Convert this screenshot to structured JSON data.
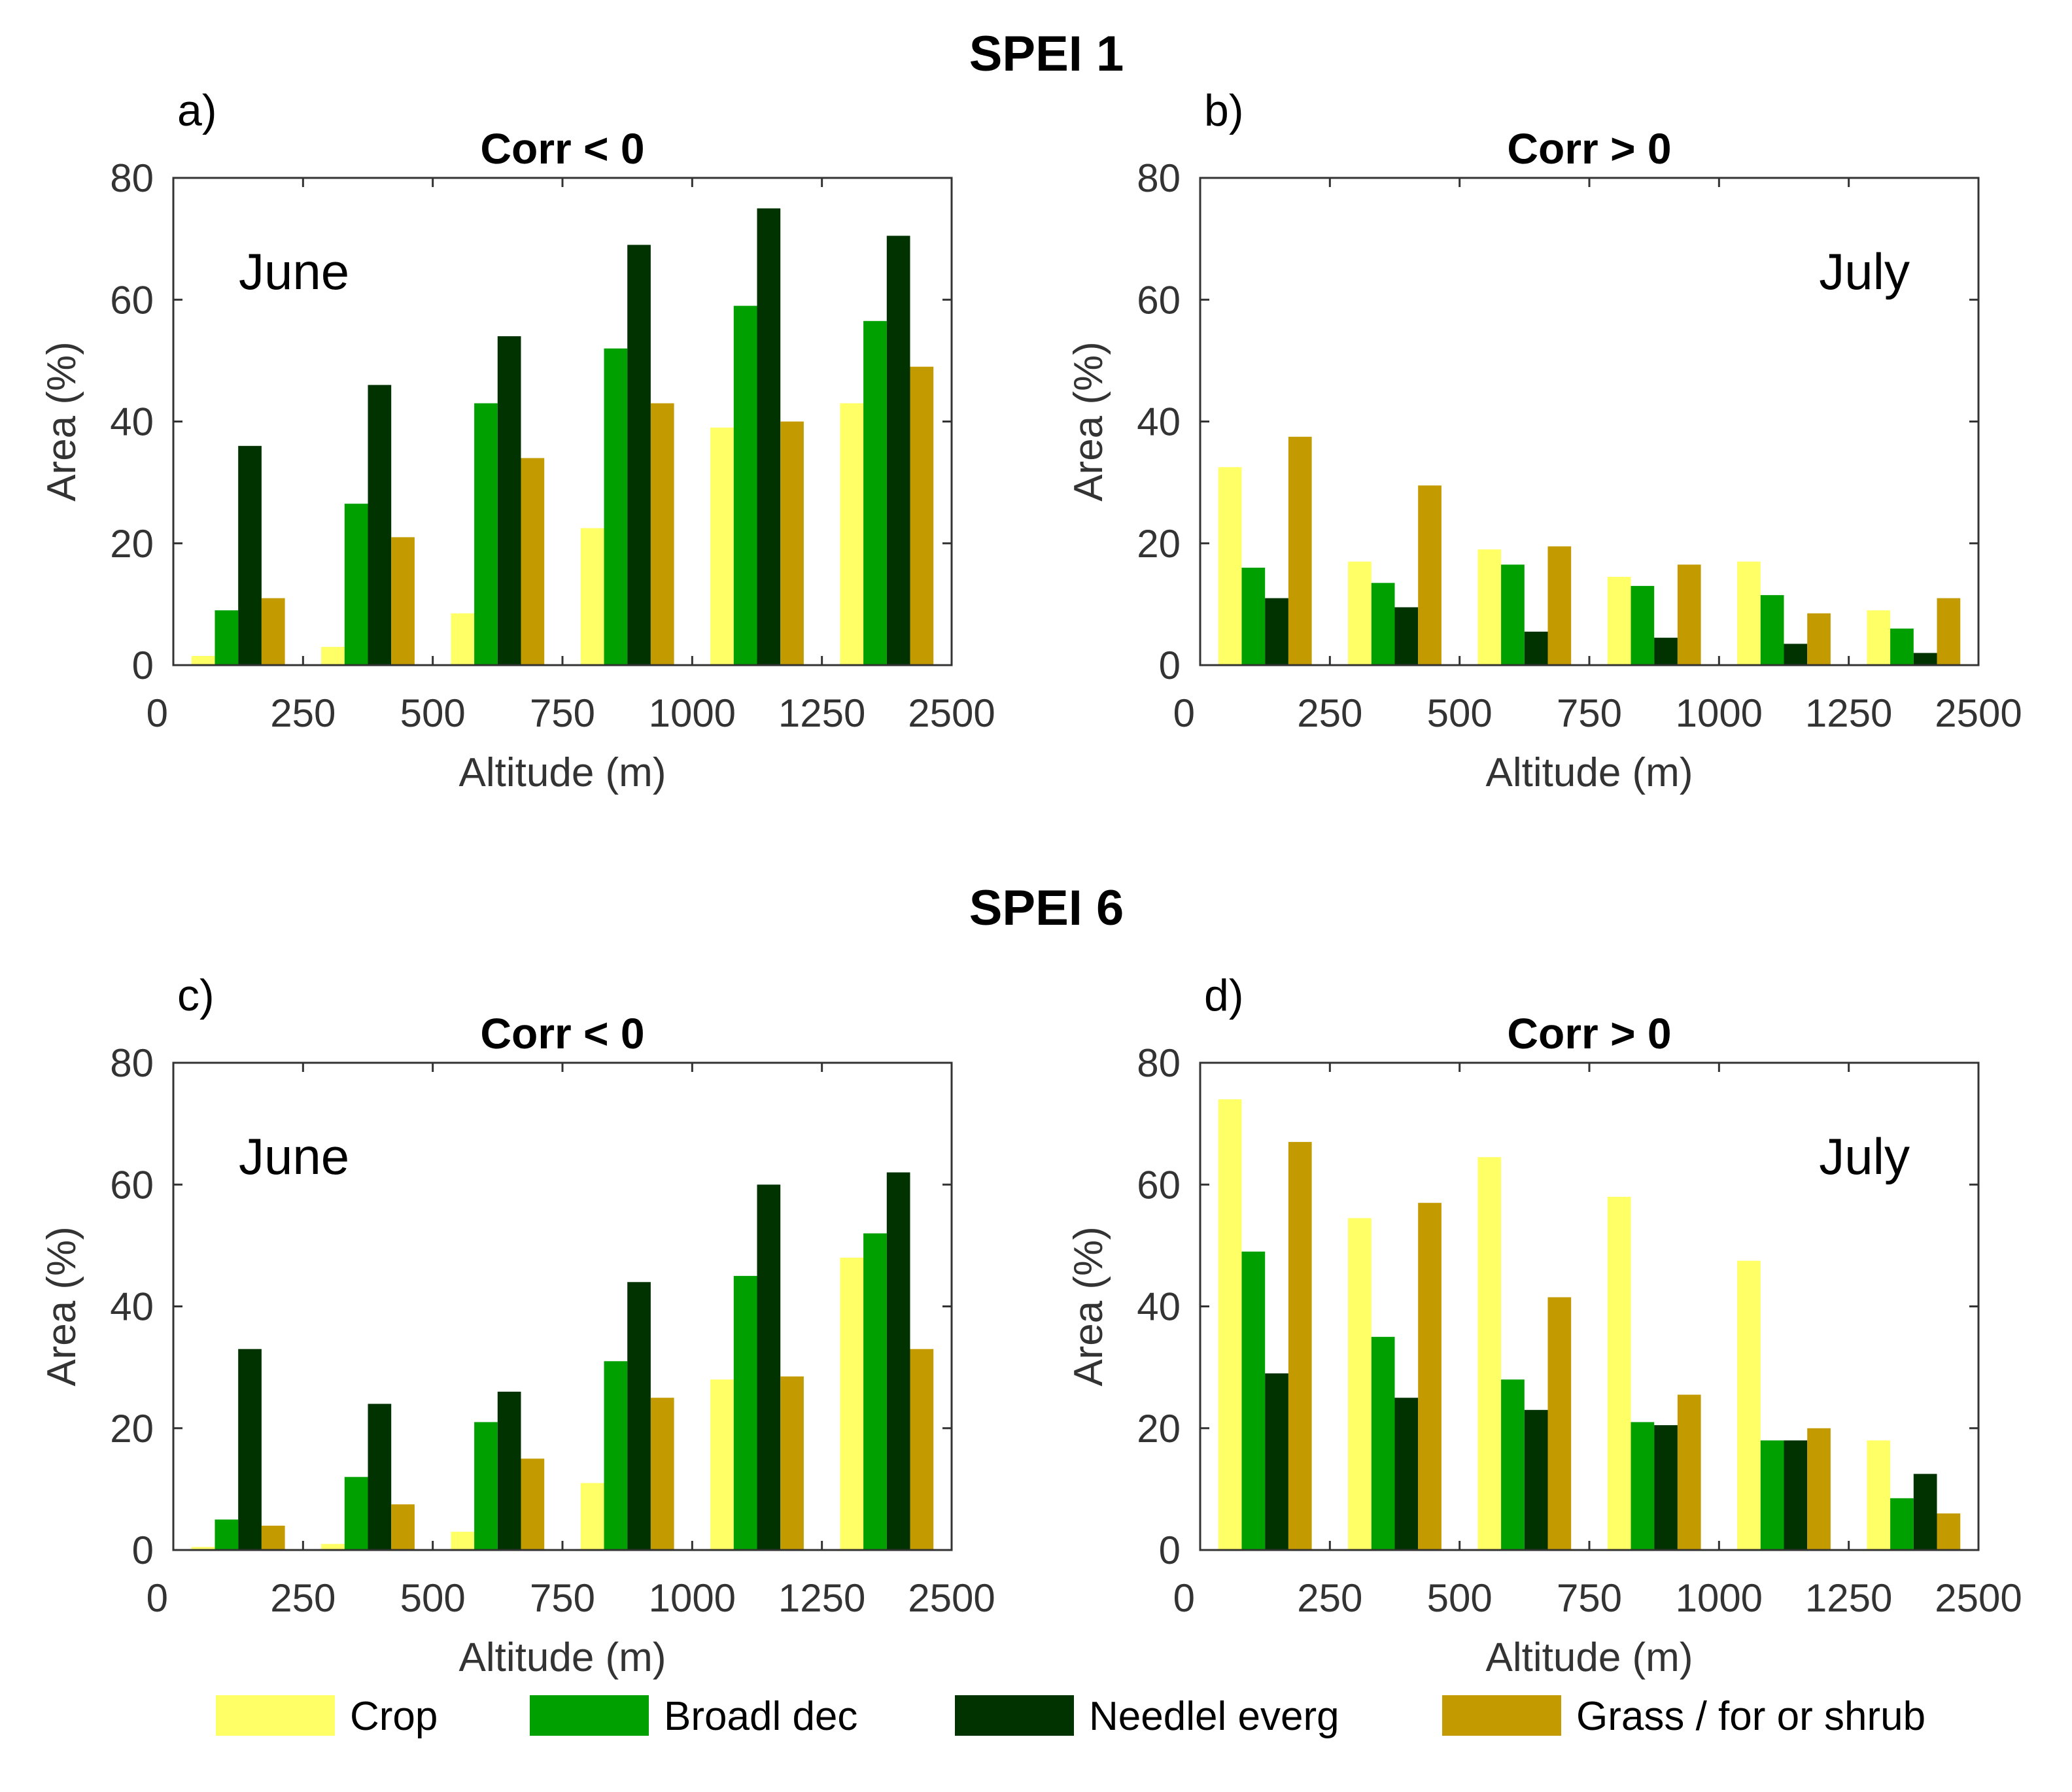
{
  "figure": {
    "suptitles": [
      "SPEI 1",
      "SPEI 6"
    ]
  },
  "colors": {
    "crop": "#FFFF66",
    "broadl_dec": "#00A000",
    "needlel_everg": "#003300",
    "grass": "#C39A00",
    "axis": "#333333"
  },
  "legend": {
    "items": [
      {
        "label": "Crop",
        "color": "#FFFF66"
      },
      {
        "label": "Broadl dec",
        "color": "#00A000"
      },
      {
        "label": "Needlel everg",
        "color": "#003300"
      },
      {
        "label": "Grass / for or shrub",
        "color": "#C39A00"
      }
    ]
  },
  "chart_data": [
    {
      "panel": "a)",
      "type": "bar",
      "title": "Corr < 0",
      "annotation": "June",
      "xlabel": "Altitude (m)",
      "ylabel": "Area (%)",
      "ylim": [
        0,
        80
      ],
      "yticks": [
        "0",
        "20",
        "40",
        "60",
        "80"
      ],
      "xticks": [
        "0",
        "250",
        "500",
        "750",
        "1000",
        "1250",
        "2500"
      ],
      "series": [
        {
          "name": "Crop",
          "values": [
            1.5,
            3,
            8.5,
            22.5,
            39,
            43
          ]
        },
        {
          "name": "Broadl dec",
          "values": [
            9,
            26.5,
            43,
            52,
            59,
            56.5
          ]
        },
        {
          "name": "Needlel everg",
          "values": [
            36,
            46,
            54,
            69,
            75,
            70.5
          ]
        },
        {
          "name": "Grass / for or shrub",
          "values": [
            11,
            21,
            34,
            43,
            40,
            49
          ]
        }
      ]
    },
    {
      "panel": "b)",
      "type": "bar",
      "title": "Corr > 0",
      "annotation": "July",
      "xlabel": "Altitude (m)",
      "ylabel": "Area (%)",
      "ylim": [
        0,
        80
      ],
      "yticks": [
        "0",
        "20",
        "40",
        "60",
        "80"
      ],
      "xticks": [
        "0",
        "250",
        "500",
        "750",
        "1000",
        "1250",
        "2500"
      ],
      "series": [
        {
          "name": "Crop",
          "values": [
            32.5,
            17,
            19,
            14.5,
            17,
            9
          ]
        },
        {
          "name": "Broadl dec",
          "values": [
            16,
            13.5,
            16.5,
            13,
            11.5,
            6
          ]
        },
        {
          "name": "Needlel everg",
          "values": [
            11,
            9.5,
            5.5,
            4.5,
            3.5,
            2
          ]
        },
        {
          "name": "Grass / for or shrub",
          "values": [
            37.5,
            29.5,
            19.5,
            16.5,
            8.5,
            11
          ]
        }
      ]
    },
    {
      "panel": "c)",
      "type": "bar",
      "title": "Corr < 0",
      "annotation": "June",
      "xlabel": "Altitude (m)",
      "ylabel": "Area (%)",
      "ylim": [
        0,
        80
      ],
      "yticks": [
        "0",
        "20",
        "40",
        "60",
        "80"
      ],
      "xticks": [
        "0",
        "250",
        "500",
        "750",
        "1000",
        "1250",
        "2500"
      ],
      "series": [
        {
          "name": "Crop",
          "values": [
            0.5,
            1,
            3,
            11,
            28,
            48
          ]
        },
        {
          "name": "Broadl dec",
          "values": [
            5,
            12,
            21,
            31,
            45,
            52
          ]
        },
        {
          "name": "Needlel everg",
          "values": [
            33,
            24,
            26,
            44,
            60,
            62
          ]
        },
        {
          "name": "Grass / for or shrub",
          "values": [
            4,
            7.5,
            15,
            25,
            28.5,
            33
          ]
        }
      ]
    },
    {
      "panel": "d)",
      "type": "bar",
      "title": "Corr > 0",
      "annotation": "July",
      "xlabel": "Altitude (m)",
      "ylabel": "Area (%)",
      "ylim": [
        0,
        80
      ],
      "yticks": [
        "0",
        "20",
        "40",
        "60",
        "80"
      ],
      "xticks": [
        "0",
        "250",
        "500",
        "750",
        "1000",
        "1250",
        "2500"
      ],
      "series": [
        {
          "name": "Crop",
          "values": [
            74,
            54.5,
            64.5,
            58,
            47.5,
            18
          ]
        },
        {
          "name": "Broadl dec",
          "values": [
            49,
            35,
            28,
            21,
            18,
            8.5
          ]
        },
        {
          "name": "Needlel everg",
          "values": [
            29,
            25,
            23,
            20.5,
            18,
            12.5
          ]
        },
        {
          "name": "Grass / for or shrub",
          "values": [
            67,
            57,
            41.5,
            25.5,
            20,
            6
          ]
        }
      ]
    }
  ]
}
